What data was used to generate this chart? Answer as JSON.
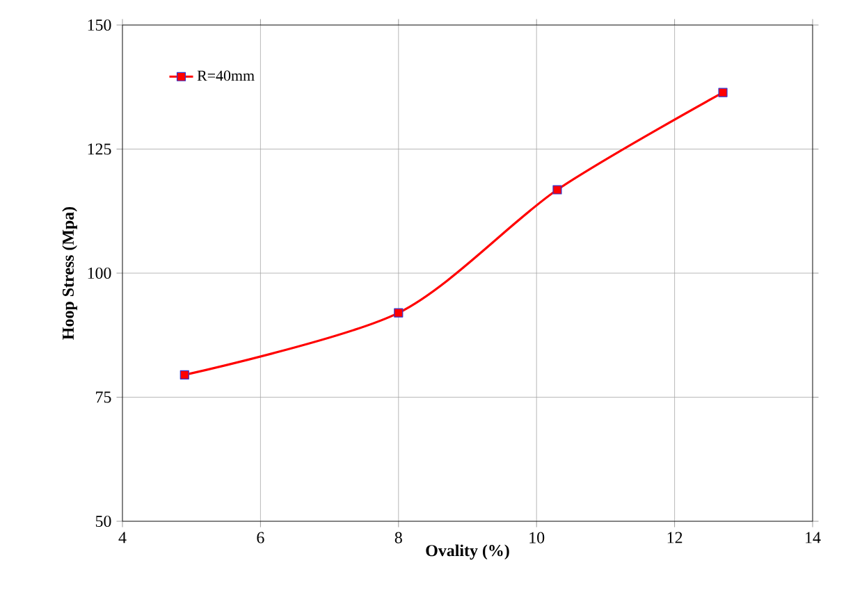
{
  "chart_data": {
    "type": "line",
    "xlabel": "Ovality (%)",
    "ylabel": "Hoop Stress (Mpa)",
    "x": [
      4.9,
      8.0,
      10.3,
      12.7
    ],
    "series": [
      {
        "name": "R=40mm",
        "color": "#ff0000",
        "values": [
          79.5,
          92.0,
          116.8,
          136.4
        ]
      }
    ],
    "xlim": [
      4,
      14
    ],
    "xticks": [
      4,
      6,
      8,
      10,
      12,
      14
    ],
    "ylim": [
      50,
      150
    ],
    "yticks": [
      50,
      75,
      100,
      125,
      150
    ],
    "grid": true,
    "legend": "top left",
    "marker": "square",
    "line_style": "solid"
  }
}
